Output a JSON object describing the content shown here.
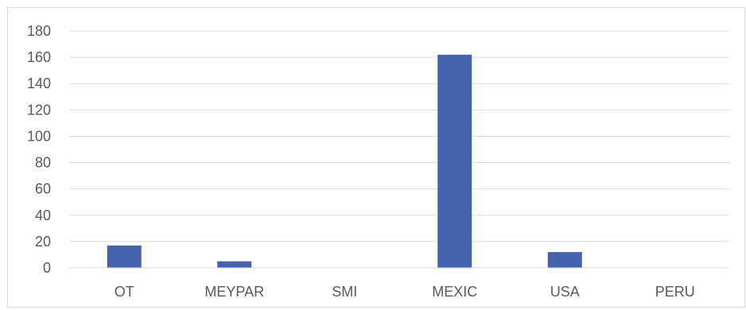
{
  "chart_data": {
    "type": "bar",
    "title": "",
    "xlabel": "",
    "ylabel": "",
    "categories": [
      "OT",
      "MEYPAR",
      "SMI",
      "MEXIC",
      "USA",
      "PERU"
    ],
    "values": [
      17,
      5,
      0,
      162,
      12,
      0
    ],
    "ylim": [
      0,
      180
    ],
    "yticks": [
      0,
      20,
      40,
      60,
      80,
      100,
      120,
      140,
      160,
      180
    ],
    "grid": true,
    "legend": "none",
    "bar_color": "#4763ae",
    "grid_color": "#d9d9d9",
    "axis_color": "#d9d9d9"
  }
}
